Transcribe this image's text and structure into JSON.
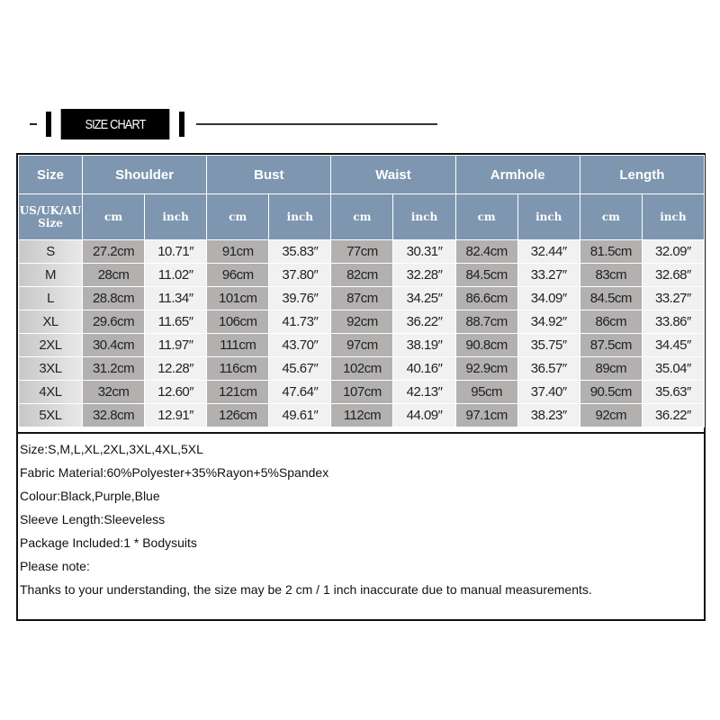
{
  "banner": {
    "title": "SIZE CHART"
  },
  "table": {
    "group_headers": [
      "Size",
      "Shoulder",
      "Bust",
      "Waist",
      "Armhole",
      "Length"
    ],
    "size_subheader": "US/UK/AU Size",
    "unit_cm": "cm",
    "unit_inch": "inch",
    "rows": [
      {
        "size": "S",
        "v": [
          "27.2cm",
          "10.71″",
          "91cm",
          "35.83″",
          "77cm",
          "30.31″",
          "82.4cm",
          "32.44″",
          "81.5cm",
          "32.09″"
        ]
      },
      {
        "size": "M",
        "v": [
          "28cm",
          "11.02″",
          "96cm",
          "37.80″",
          "82cm",
          "32.28″",
          "84.5cm",
          "33.27″",
          "83cm",
          "32.68″"
        ]
      },
      {
        "size": "L",
        "v": [
          "28.8cm",
          "11.34″",
          "101cm",
          "39.76″",
          "87cm",
          "34.25″",
          "86.6cm",
          "34.09″",
          "84.5cm",
          "33.27″"
        ]
      },
      {
        "size": "XL",
        "v": [
          "29.6cm",
          "11.65″",
          "106cm",
          "41.73″",
          "92cm",
          "36.22″",
          "88.7cm",
          "34.92″",
          "86cm",
          "33.86″"
        ]
      },
      {
        "size": "2XL",
        "v": [
          "30.4cm",
          "11.97″",
          "111cm",
          "43.70″",
          "97cm",
          "38.19″",
          "90.8cm",
          "35.75″",
          "87.5cm",
          "34.45″"
        ]
      },
      {
        "size": "3XL",
        "v": [
          "31.2cm",
          "12.28″",
          "116cm",
          "45.67″",
          "102cm",
          "40.16″",
          "92.9cm",
          "36.57″",
          "89cm",
          "35.04″"
        ]
      },
      {
        "size": "4XL",
        "v": [
          "32cm",
          "12.60″",
          "121cm",
          "47.64″",
          "107cm",
          "42.13″",
          "95cm",
          "37.40″",
          "90.5cm",
          "35.63″"
        ]
      },
      {
        "size": "5XL",
        "v": [
          "32.8cm",
          "12.91″",
          "126cm",
          "49.61″",
          "112cm",
          "44.09″",
          "97.1cm",
          "38.23″",
          "92cm",
          "36.22″"
        ]
      }
    ]
  },
  "info": [
    "Size:S,M,L,XL,2XL,3XL,4XL,5XL",
    "Fabric Material:60%Polyester+35%Rayon+5%Spandex",
    "Colour:Black,Purple,Blue",
    "Sleeve Length:Sleeveless",
    "Package Included:1 * Bodysuits",
    "Please note:",
    "Thanks to your understanding, the size may be 2 cm / 1 inch inaccurate due to manual measurements."
  ],
  "colors": {
    "header": "#7e96b0",
    "cm_cell": "#b3b0b0",
    "inch_cell": "#f1f1f1"
  }
}
